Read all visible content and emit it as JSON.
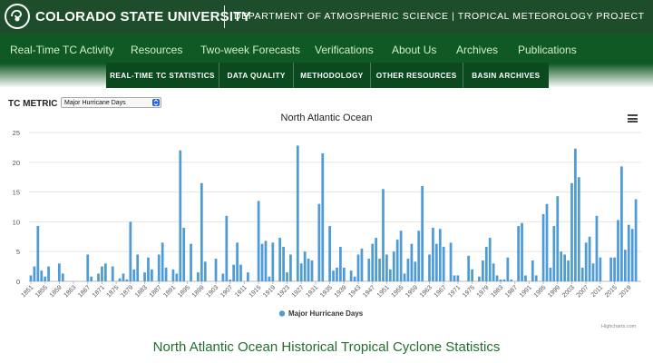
{
  "header": {
    "university": "COLORADO STATE UNIVERSITY",
    "department": "DEPARTMENT OF ATMOSPHERIC SCIENCE | TROPICAL METEOROLOGY PROJECT",
    "logo_icon": "ram-logo-icon"
  },
  "nav": {
    "items": [
      {
        "label": "Real-Time TC Activity"
      },
      {
        "label": "Resources"
      },
      {
        "label": "Two-week Forecasts"
      },
      {
        "label": "Verifications"
      },
      {
        "label": "About Us"
      },
      {
        "label": "Archives"
      },
      {
        "label": "Publications"
      }
    ]
  },
  "subnav": {
    "items": [
      {
        "label": "REAL-TIME TC STATISTICS"
      },
      {
        "label": "DATA QUALITY"
      },
      {
        "label": "METHODOLOGY"
      },
      {
        "label": "OTHER RESOURCES"
      },
      {
        "label": "BASIN ARCHIVES"
      }
    ]
  },
  "controls": {
    "metric_label": "TC METRIC",
    "metric_value": "Major Hurricane Days"
  },
  "menu_icon": "hamburger-menu-icon",
  "credits": "Highcharts.com",
  "footer_title": "North Atlantic Ocean Historical Tropical Cyclone Statistics",
  "colors": {
    "brand": "#1e4d2b",
    "nav": "#0f5a24",
    "bar": "#4e9bd6",
    "footer_text": "#226e2e"
  },
  "chart_data": {
    "type": "bar",
    "title": "North Atlantic Ocean",
    "ylim": [
      0,
      25
    ],
    "yticks": [
      0,
      5,
      10,
      15,
      20,
      25
    ],
    "xticks": [
      1851,
      1855,
      1859,
      1863,
      1867,
      1871,
      1875,
      1879,
      1883,
      1887,
      1891,
      1895,
      1899,
      1903,
      1907,
      1911,
      1915,
      1919,
      1923,
      1927,
      1931,
      1935,
      1939,
      1943,
      1947,
      1951,
      1955,
      1959,
      1963,
      1967,
      1971,
      1975,
      1979,
      1983,
      1987,
      1991,
      1995,
      1999,
      2003,
      2007,
      2011,
      2015,
      2019
    ],
    "legend_position": "bottom-center",
    "grid": true,
    "series": [
      {
        "name": "Major Hurricane Days",
        "x_start": 1851,
        "values": [
          1.0,
          2.5,
          9.3,
          1.8,
          0.8,
          2.5,
          0,
          0,
          3.0,
          1.3,
          0,
          0,
          0,
          0,
          0,
          0,
          4.5,
          0.8,
          0,
          1.3,
          2.5,
          3.0,
          0,
          2.5,
          0,
          0.5,
          1.3,
          0.3,
          10.0,
          2.0,
          4.5,
          0,
          1.5,
          4.0,
          2.0,
          0,
          4.5,
          6.5,
          2.3,
          0,
          2.0,
          1.3,
          22.0,
          9.0,
          0,
          6.3,
          0,
          1.5,
          16.5,
          3.3,
          0,
          0,
          3.8,
          0,
          1.3,
          11.0,
          0.3,
          2.8,
          6.5,
          2.8,
          0,
          1.5,
          0,
          0,
          13.5,
          6.3,
          6.8,
          0.8,
          6.5,
          0,
          7.3,
          5.8,
          1.5,
          4.5,
          0,
          22.8,
          3.0,
          5.0,
          3.8,
          3.5,
          0,
          13.0,
          21.5,
          0,
          9.3,
          1.8,
          2.3,
          5.8,
          2.3,
          0,
          1.8,
          0.8,
          4.5,
          5.5,
          0,
          3.8,
          6.3,
          7.3,
          3.8,
          15.5,
          4.5,
          2.0,
          5.0,
          7.0,
          8.5,
          1.3,
          3.8,
          6.3,
          3.3,
          8.5,
          16.0,
          0,
          4.5,
          9.0,
          6.3,
          8.8,
          5.8,
          0,
          6.5,
          1.0,
          1.0,
          0,
          0,
          4.3,
          2.0,
          0,
          0.8,
          3.5,
          5.8,
          7.3,
          3.0,
          1.0,
          0.3,
          0.3,
          4.0,
          0.3,
          0,
          9.3,
          9.8,
          1.0,
          0,
          3.5,
          1.0,
          0,
          11.3,
          13.0,
          2.3,
          9.3,
          14.3,
          5.0,
          4.5,
          3.5,
          16.5,
          22.3,
          17.5,
          2.3,
          6.5,
          7.5,
          3.0,
          11.0,
          4.0,
          0,
          0,
          4.0,
          4.0,
          10.3,
          19.3,
          5.3,
          9.5,
          8.8,
          13.8
        ]
      }
    ]
  }
}
